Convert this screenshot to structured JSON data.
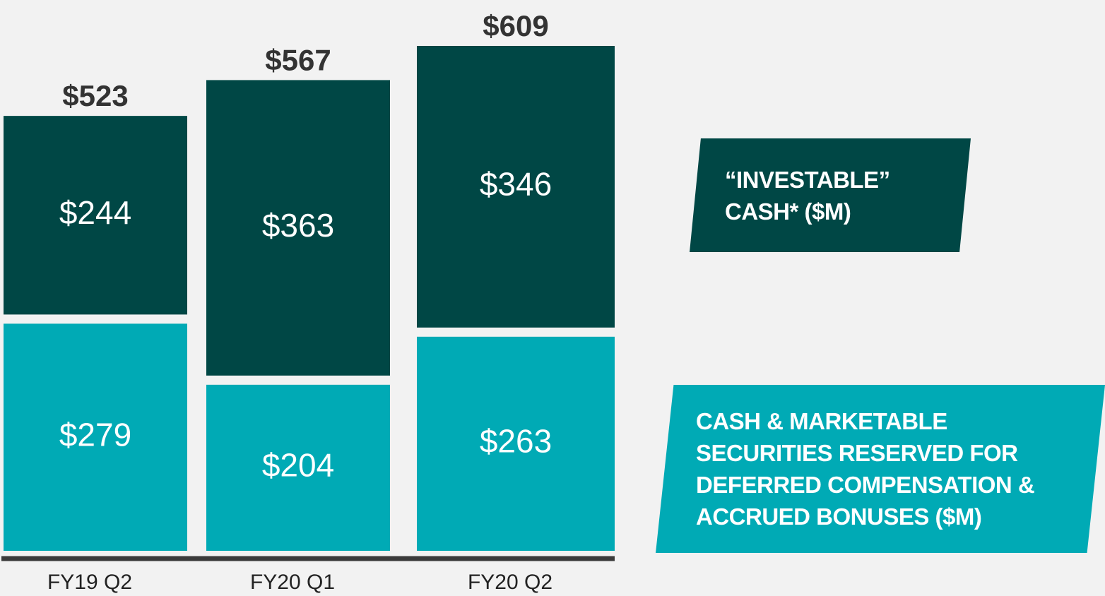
{
  "chart_data": {
    "type": "stacked_bar",
    "categories": [
      "FY19 Q2",
      "FY20 Q1",
      "FY20 Q2"
    ],
    "series": [
      {
        "name": "CASH & MARKETABLE SECURITIES RESERVED FOR DEFERRED COMPENSATION & ACCRUED BONUSES ($M)",
        "color": "#00aab5",
        "values": [
          279,
          204,
          263
        ],
        "value_labels": [
          "$279",
          "$204",
          "$263"
        ]
      },
      {
        "name": "“INVESTABLE” CASH* ($M)",
        "color": "#004745",
        "values": [
          244,
          363,
          346
        ],
        "value_labels": [
          "$244",
          "$363",
          "$346"
        ]
      }
    ],
    "totals": [
      523,
      567,
      609
    ],
    "total_labels": [
      "$523",
      "$567",
      "$609"
    ]
  }
}
